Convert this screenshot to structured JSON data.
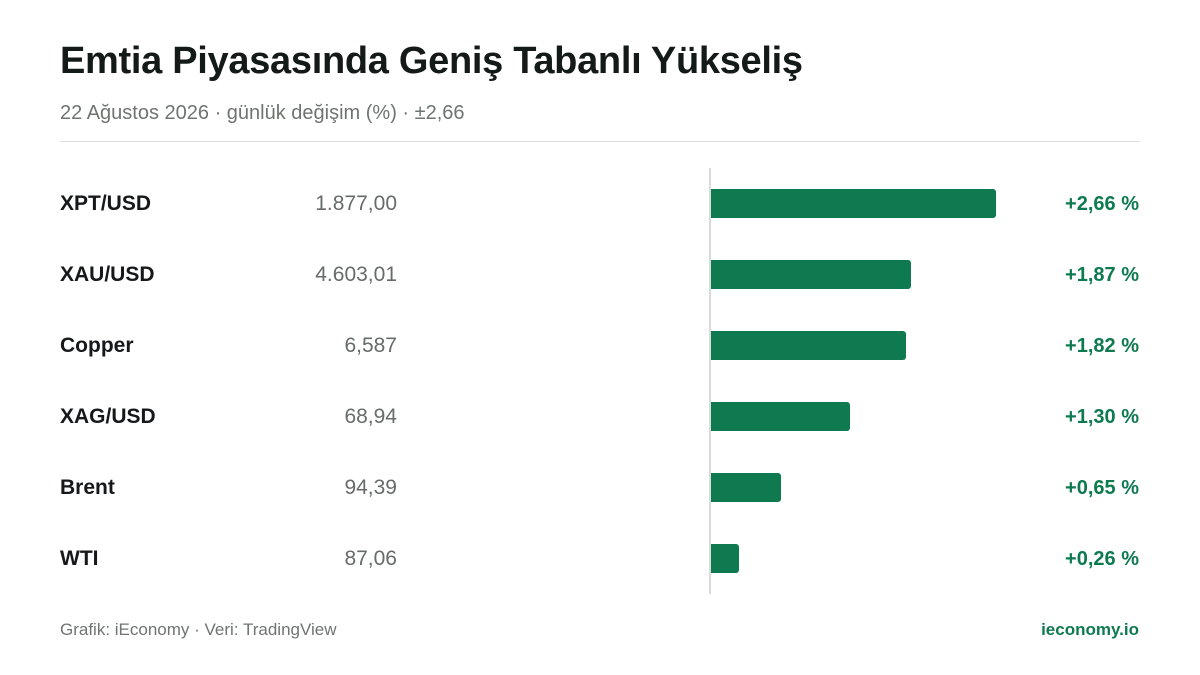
{
  "header": {
    "title": "Emtia Piyasasında Geniş Tabanlı Yükseliş",
    "subtitle": "22 Ağustos 2026 · günlük değişim (%) · ±2,66"
  },
  "colors": {
    "accent": "#0e7a4f",
    "bar": "#0f7a50"
  },
  "chart_data": {
    "type": "bar",
    "orientation": "horizontal",
    "categories": [
      "XPT/USD",
      "XAU/USD",
      "Copper",
      "XAG/USD",
      "Brent",
      "WTI"
    ],
    "prices": [
      "1.877,00",
      "4.603,01",
      "6,587",
      "68,94",
      "94,39",
      "87,06"
    ],
    "values": [
      2.66,
      1.87,
      1.82,
      1.3,
      0.65,
      0.26
    ],
    "value_labels": [
      "+2,66 %",
      "+1,87 %",
      "+1,82 %",
      "+1,30 %",
      "+0,65 %",
      "+0,26 %"
    ],
    "xlim": [
      -2.66,
      2.66
    ],
    "grid": false,
    "legend": "none"
  },
  "footer": {
    "source": "Grafik: iEconomy · Veri: TradingView",
    "brand": "ieconomy.io"
  }
}
